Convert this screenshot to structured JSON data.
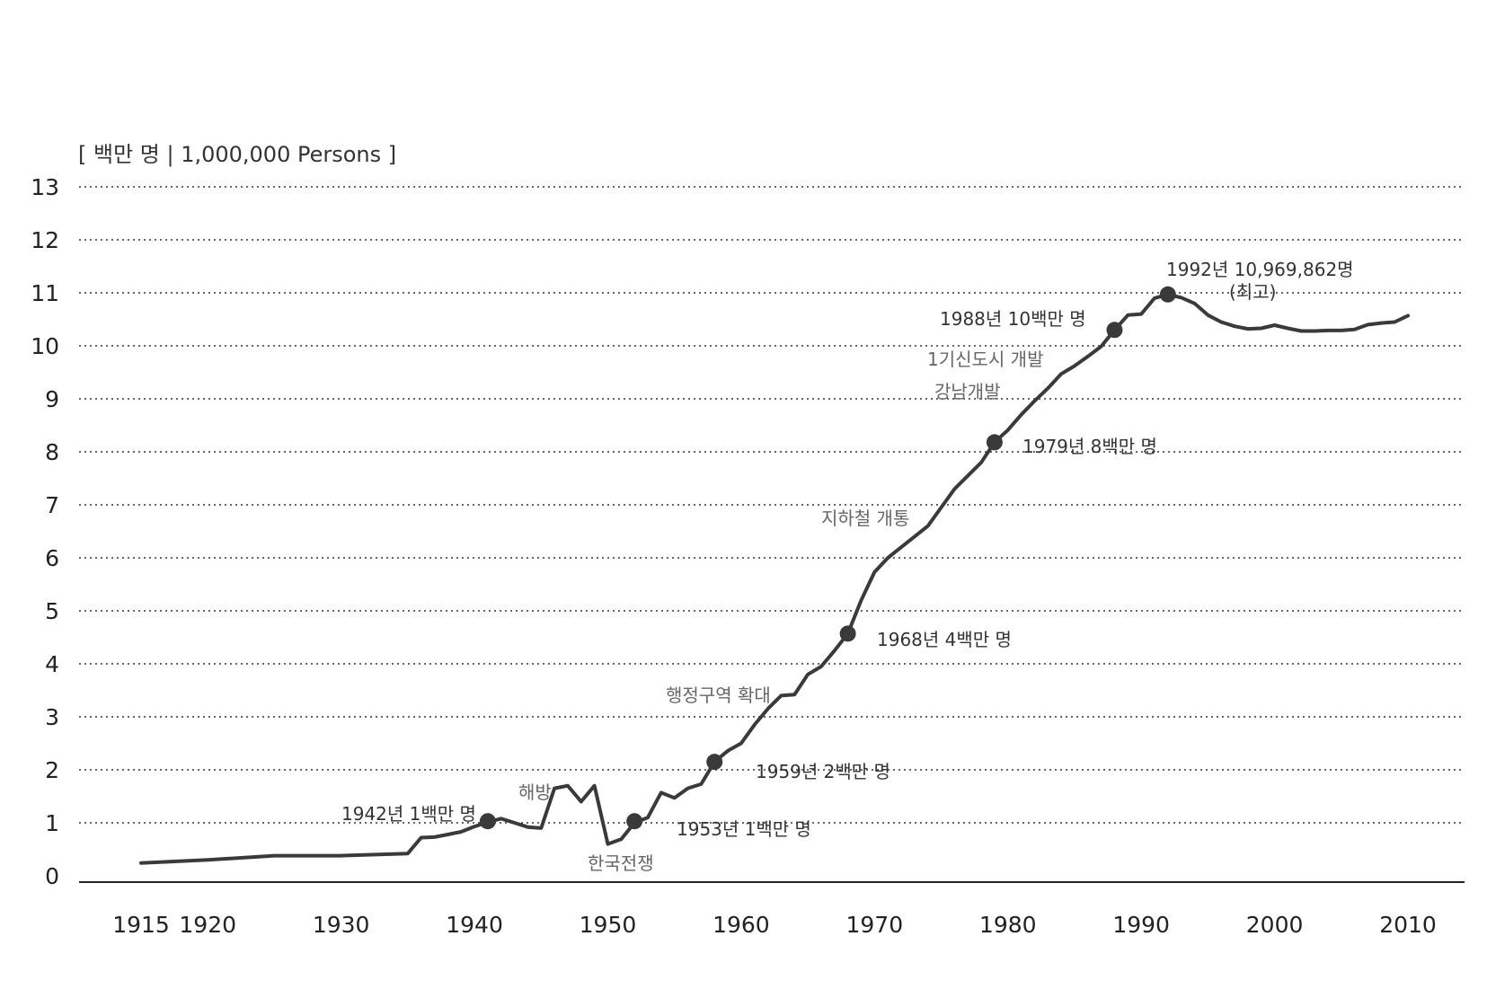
{
  "chart_data": {
    "type": "line",
    "ylabel": "[ 백만 명 | 1,000,000 Persons ]",
    "ylim": [
      0,
      13
    ],
    "yticks": [
      "0",
      "1",
      "2",
      "3",
      "4",
      "5",
      "6",
      "7",
      "8",
      "9",
      "10",
      "11",
      "12",
      "13"
    ],
    "xlim": [
      1915,
      2010
    ],
    "xticks": [
      "1915",
      "1920",
      "1930",
      "1940",
      "1950",
      "1960",
      "1970",
      "1980",
      "1990",
      "2000",
      "2010"
    ],
    "grid": "horizontal dotted",
    "line_color": "#3a3a3a",
    "series": [
      {
        "x": [
          1915,
          1920,
          1925,
          1930,
          1935,
          1936,
          1937,
          1938,
          1939,
          1940,
          1941,
          1942,
          1943,
          1944,
          1945,
          1946,
          1947,
          1948,
          1949,
          1950,
          1951,
          1952,
          1953,
          1954,
          1955,
          1956,
          1957,
          1958,
          1959,
          1960,
          1961,
          1962,
          1963,
          1964,
          1965,
          1966,
          1967,
          1968,
          1969,
          1970,
          1971,
          1972,
          1973,
          1974,
          1975,
          1976,
          1977,
          1978,
          1979,
          1980,
          1981,
          1982,
          1983,
          1984,
          1985,
          1986,
          1987,
          1988,
          1989,
          1990,
          1991,
          1992,
          1993,
          1994,
          1995,
          1996,
          1997,
          1998,
          1999,
          2000,
          2001,
          2002,
          2003,
          2004,
          2005,
          2006,
          2007,
          2008,
          2009,
          2010
        ],
        "y": [
          0.24,
          0.3,
          0.38,
          0.38,
          0.42,
          0.72,
          0.73,
          0.78,
          0.83,
          0.93,
          1.01,
          1.08,
          1.0,
          0.92,
          0.9,
          1.65,
          1.7,
          1.4,
          1.7,
          0.6,
          0.69,
          1.0,
          1.1,
          1.57,
          1.47,
          1.65,
          1.73,
          2.15,
          2.36,
          2.5,
          2.85,
          3.15,
          3.4,
          3.42,
          3.8,
          3.95,
          4.25,
          4.57,
          5.2,
          5.73,
          6.0,
          6.2,
          6.4,
          6.6,
          6.95,
          7.3,
          7.55,
          7.8,
          8.18,
          8.41,
          8.7,
          8.96,
          9.2,
          9.47,
          9.62,
          9.8,
          9.99,
          10.3,
          10.58,
          10.6,
          10.9,
          10.97,
          10.91,
          10.8,
          10.58,
          10.45,
          10.37,
          10.32,
          10.33,
          10.39,
          10.33,
          10.28,
          10.28,
          10.29,
          10.29,
          10.31,
          10.4,
          10.43,
          10.45,
          10.57
        ]
      }
    ],
    "markers": [
      {
        "x": 1941,
        "y": 1.03
      },
      {
        "x": 1952,
        "y": 1.03
      },
      {
        "x": 1958,
        "y": 2.15
      },
      {
        "x": 1968,
        "y": 4.57
      },
      {
        "x": 1979,
        "y": 8.18
      },
      {
        "x": 1988,
        "y": 10.3
      },
      {
        "x": 1992,
        "y": 10.97
      }
    ],
    "annotations": [
      {
        "id": "1942",
        "text": "1942년 1백만 명",
        "style": "dark"
      },
      {
        "id": "haebang",
        "text": "해방",
        "style": "light"
      },
      {
        "id": "war",
        "text": "한국전쟁",
        "style": "light"
      },
      {
        "id": "1953",
        "text": "1953년 1백만 명",
        "style": "dark"
      },
      {
        "id": "1959",
        "text": "1959년 2백만 명",
        "style": "dark"
      },
      {
        "id": "admin",
        "text": "행정구역 확대",
        "style": "light"
      },
      {
        "id": "1968",
        "text": "1968년 4백만 명",
        "style": "dark"
      },
      {
        "id": "subway",
        "text": "지하철 개통",
        "style": "light"
      },
      {
        "id": "1979",
        "text": "1979년 8백만 명",
        "style": "dark"
      },
      {
        "id": "gangnam",
        "text": "강남개발",
        "style": "light"
      },
      {
        "id": "newtown",
        "text": "1기신도시 개발",
        "style": "light"
      },
      {
        "id": "1988",
        "text": "1988년 10백만 명",
        "style": "dark"
      },
      {
        "id": "1992",
        "text": "1992년 10,969,862명",
        "style": "dark"
      },
      {
        "id": "peak",
        "text": "(최고)",
        "style": "dark"
      }
    ]
  }
}
